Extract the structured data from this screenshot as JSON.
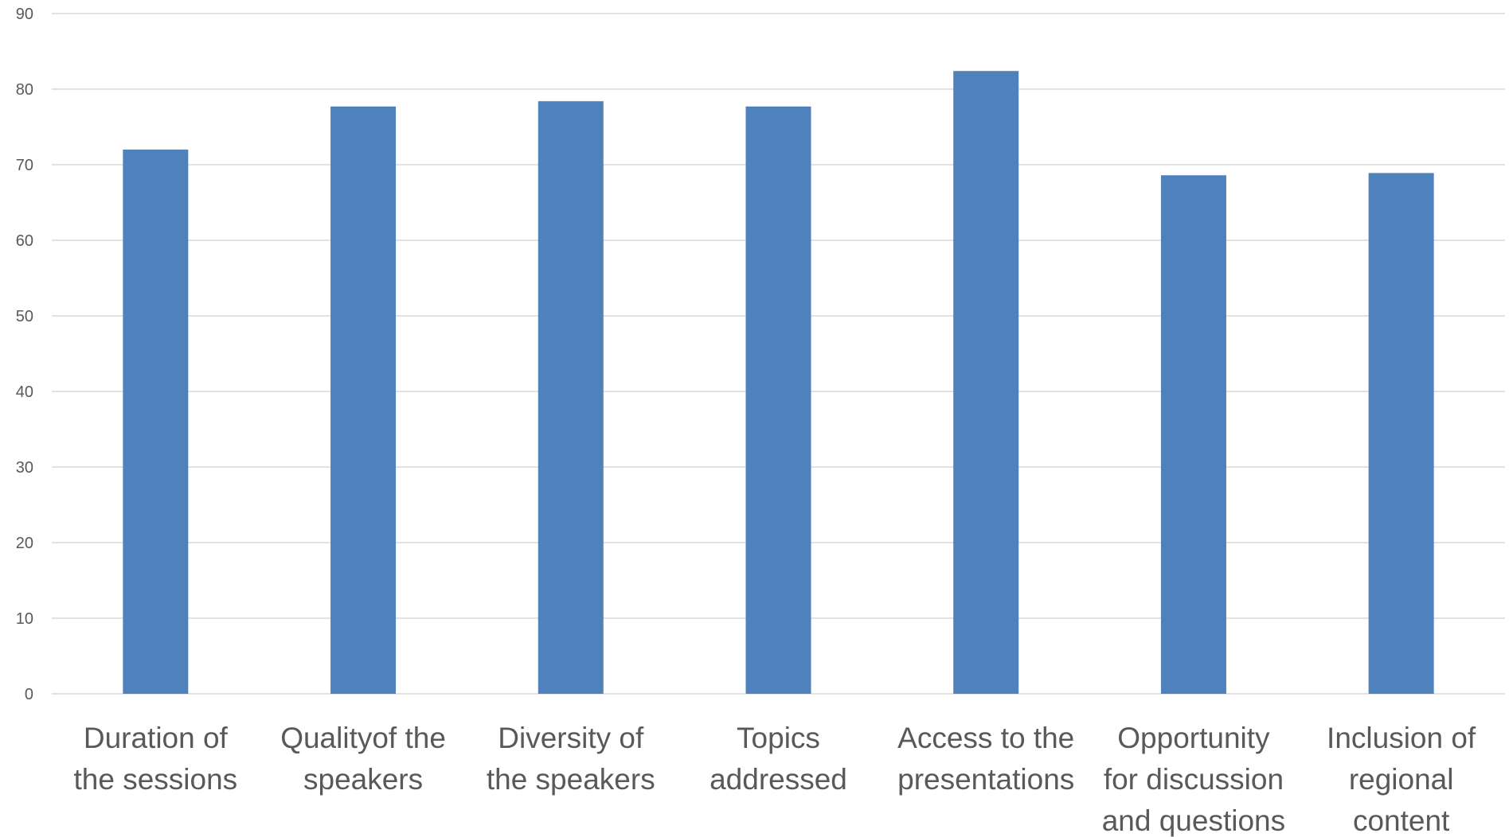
{
  "chart_data": {
    "type": "bar",
    "title": "",
    "xlabel": "",
    "ylabel": "",
    "ylim": [
      0,
      90
    ],
    "yticks": [
      0,
      10,
      20,
      30,
      40,
      50,
      60,
      70,
      80,
      90
    ],
    "grid": true,
    "legend": "none",
    "categories": [
      [
        "Duration of",
        "the sessions"
      ],
      [
        "Qualityof the",
        "speakers"
      ],
      [
        "Diversity of",
        "the speakers"
      ],
      [
        "Topics",
        "addressed"
      ],
      [
        "Access to the",
        "presentations"
      ],
      [
        "Opportunity",
        "for discussion",
        "and questions"
      ],
      [
        "Inclusion of",
        "regional",
        "content"
      ]
    ],
    "values": [
      72,
      77.7,
      78.4,
      77.7,
      82.4,
      68.6,
      68.9
    ],
    "colors": {
      "bar": "#4f81bd",
      "grid": "#d9d9d9",
      "axis_text": "#595959"
    }
  }
}
